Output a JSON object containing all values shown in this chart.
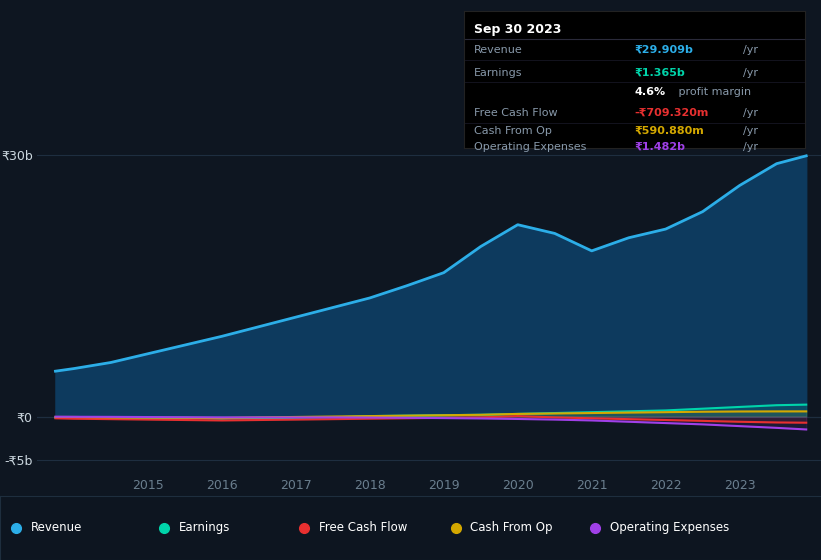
{
  "background_color": "#0e1621",
  "plot_bg_color": "#0e1621",
  "title": "Sep 30 2023",
  "x_years": [
    2013.75,
    2014.0,
    2014.5,
    2015.0,
    2015.5,
    2016.0,
    2016.5,
    2017.0,
    2017.5,
    2018.0,
    2018.5,
    2019.0,
    2019.5,
    2020.0,
    2020.5,
    2021.0,
    2021.5,
    2022.0,
    2022.5,
    2023.0,
    2023.5,
    2023.9
  ],
  "revenue": [
    5.2,
    5.5,
    6.2,
    7.2,
    8.2,
    9.2,
    10.3,
    11.4,
    12.5,
    13.6,
    15.0,
    16.5,
    19.5,
    22.0,
    21.0,
    19.0,
    20.5,
    21.5,
    23.5,
    26.5,
    29.0,
    29.9
  ],
  "earnings": [
    -0.15,
    -0.1,
    -0.15,
    -0.2,
    -0.15,
    -0.25,
    -0.2,
    -0.15,
    -0.1,
    0.05,
    0.1,
    0.15,
    0.2,
    0.3,
    0.4,
    0.5,
    0.6,
    0.7,
    0.9,
    1.1,
    1.3,
    1.365
  ],
  "free_cash_flow": [
    -0.2,
    -0.25,
    -0.3,
    -0.35,
    -0.4,
    -0.45,
    -0.4,
    -0.35,
    -0.3,
    -0.25,
    -0.2,
    -0.15,
    -0.1,
    0.05,
    -0.1,
    -0.2,
    -0.3,
    -0.4,
    -0.5,
    -0.6,
    -0.68,
    -0.709
  ],
  "cash_from_op": [
    -0.05,
    -0.05,
    -0.1,
    -0.12,
    -0.15,
    -0.18,
    -0.1,
    -0.05,
    0.0,
    0.05,
    0.1,
    0.15,
    0.2,
    0.3,
    0.35,
    0.4,
    0.45,
    0.5,
    0.55,
    0.58,
    0.59,
    0.591
  ],
  "operating_expenses": [
    -0.02,
    -0.03,
    -0.04,
    -0.06,
    -0.08,
    -0.1,
    -0.1,
    -0.1,
    -0.1,
    -0.12,
    -0.15,
    -0.18,
    -0.22,
    -0.28,
    -0.35,
    -0.45,
    -0.6,
    -0.75,
    -0.9,
    -1.1,
    -1.3,
    -1.482
  ],
  "revenue_color": "#2caee8",
  "earnings_color": "#00d4aa",
  "fcf_color": "#e83030",
  "cashop_color": "#d4a800",
  "opex_color": "#a040e8",
  "revenue_fill": "#0d3a5e",
  "xlim": [
    2013.5,
    2024.1
  ],
  "ylim": [
    -6.5,
    33.0
  ],
  "grid_color": "#1e2e40",
  "tick_color": "#6a7e8e",
  "text_color": "#8899aa",
  "text_color_bright": "#ccd8e0",
  "legend_bg": "#0d1520",
  "legend_border": "#1e2e3e",
  "year_ticks": [
    2015,
    2016,
    2017,
    2018,
    2019,
    2020,
    2021,
    2022,
    2023
  ],
  "info_revenue_val": "₹29.909b",
  "info_earnings_val": "₹1.365b",
  "info_margin": "4.6%",
  "info_fcf_val": "-₹709.320m",
  "info_cashop_val": "₹590.880m",
  "info_opex_val": "₹1.482b"
}
